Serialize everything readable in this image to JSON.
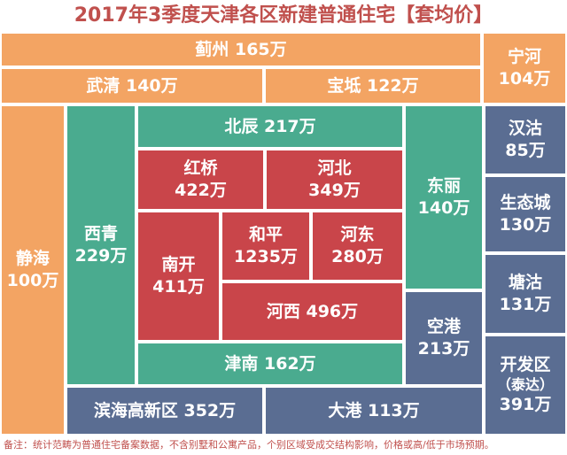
{
  "title": "2017年3季度天津各区新建普通住宅【套均价】",
  "colors": {
    "outer": "#f3a463",
    "middle": "#4aab8f",
    "core": "#c9454a",
    "binhai": "#5a6d92",
    "title": "#c0504d"
  },
  "districts": {
    "jizhou": "蓟州 165万",
    "ninghe_name": "宁河",
    "ninghe_value": "104万",
    "wuqing": "武清 140万",
    "baodi": "宝坻 122万",
    "jinghai_name": "静海",
    "jinghai_value": "100万",
    "xiqing_name": "西青",
    "xiqing_value": "229万",
    "beichen": "北辰 217万",
    "dongli_name": "东丽",
    "dongli_value": "140万",
    "hongqiao_name": "红桥",
    "hongqiao_value": "422万",
    "hebei_name": "河北",
    "hebei_value": "349万",
    "nankai_name": "南开",
    "nankai_value": "411万",
    "heping_name": "和平",
    "heping_value": "1235万",
    "hedong_name": "河东",
    "hedong_value": "280万",
    "hexi": "河西 496万",
    "jinnan": "津南 162万",
    "konggang_name": "空港",
    "konggang_value": "213万",
    "hangu_name": "汉沽",
    "hangu_value": "85万",
    "shengtaicheng_name": "生态城",
    "shengtaicheng_value": "130万",
    "tanggu_name": "塘沽",
    "tanggu_value": "131万",
    "kaifaqu_name": "开发区",
    "kaifaqu_sub": "（泰达）",
    "kaifaqu_value": "391万",
    "binhaigaoxin": "滨海高新区 352万",
    "dagang": "大港 113万"
  },
  "footnote": "备注：统计范畴为普通住宅备案数据，不含别墅和公寓产品，个别区域受成交结构影响，价格或高/低于市场预期。"
}
